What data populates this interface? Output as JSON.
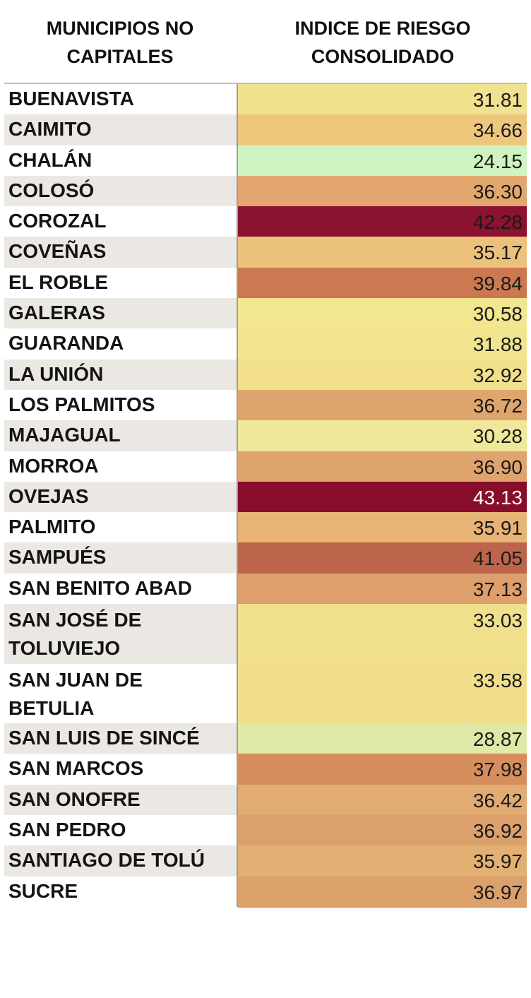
{
  "header": {
    "col1_line1": "MUNICIPIOS NO",
    "col1_line2": "CAPITALES",
    "col2_line1": "INDICE DE RIESGO",
    "col2_line2": "CONSOLIDADO"
  },
  "rows": [
    {
      "name": "BUENAVISTA",
      "value": "31.81",
      "color": "#f1e290"
    },
    {
      "name": "CAIMITO",
      "value": "34.66",
      "color": "#eec77c"
    },
    {
      "name": "CHALÁN",
      "value": "24.15",
      "color": "#cff4c1"
    },
    {
      "name": "COLOSÓ",
      "value": "36.30",
      "color": "#e2a66f"
    },
    {
      "name": "COROZAL",
      "value": "42.28",
      "color": "#8b1230"
    },
    {
      "name": "COVEÑAS",
      "value": "35.17",
      "color": "#ecc17a"
    },
    {
      "name": "EL ROBLE",
      "value": "39.84",
      "color": "#cc7851"
    },
    {
      "name": "GALERAS",
      "value": "30.58",
      "color": "#f2e68e"
    },
    {
      "name": "GUARANDA",
      "value": "31.88",
      "color": "#f2e48e"
    },
    {
      "name": "LA UNIÓN",
      "value": "32.92",
      "color": "#f1df8a"
    },
    {
      "name": "LOS PALMITOS",
      "value": "36.72",
      "color": "#dfa56e"
    },
    {
      "name": "MAJAGUAL",
      "value": "30.28",
      "color": "#efe799"
    },
    {
      "name": "MORROA",
      "value": "36.90",
      "color": "#dfa46d"
    },
    {
      "name": "OVEJAS",
      "value": "43.13",
      "color": "#880d2c"
    },
    {
      "name": "PALMITO",
      "value": "35.91",
      "color": "#e7b475"
    },
    {
      "name": "SAMPUÉS",
      "value": "41.05",
      "color": "#bd654a"
    },
    {
      "name": "SAN BENITO ABAD",
      "value": "37.13",
      "color": "#dd9f6b"
    },
    {
      "name": "SAN JOSÉ DE TOLUVIEJO",
      "name_line1": "SAN JOSÉ DE",
      "name_line2": "TOLUVIEJO",
      "value": "33.03",
      "color": "#f0e08c"
    },
    {
      "name": "SAN JUAN DE BETULIA",
      "name_line1": "SAN JUAN DE",
      "name_line2": "BETULIA",
      "value": "33.58",
      "color": "#f0de8a"
    },
    {
      "name": "SAN LUIS DE SINCÉ",
      "value": "28.87",
      "color": "#dfe9a7"
    },
    {
      "name": "SAN MARCOS",
      "value": "37.98",
      "color": "#d68e5e"
    },
    {
      "name": "SAN ONOFRE",
      "value": "36.42",
      "color": "#e1ab72"
    },
    {
      "name": "SAN PEDRO",
      "value": "36.92",
      "color": "#dba06b"
    },
    {
      "name": "SANTIAGO DE TOLÚ",
      "value": "35.97",
      "color": "#e3b074"
    },
    {
      "name": "SUCRE",
      "value": "36.97",
      "color": "#dca06b"
    }
  ]
}
